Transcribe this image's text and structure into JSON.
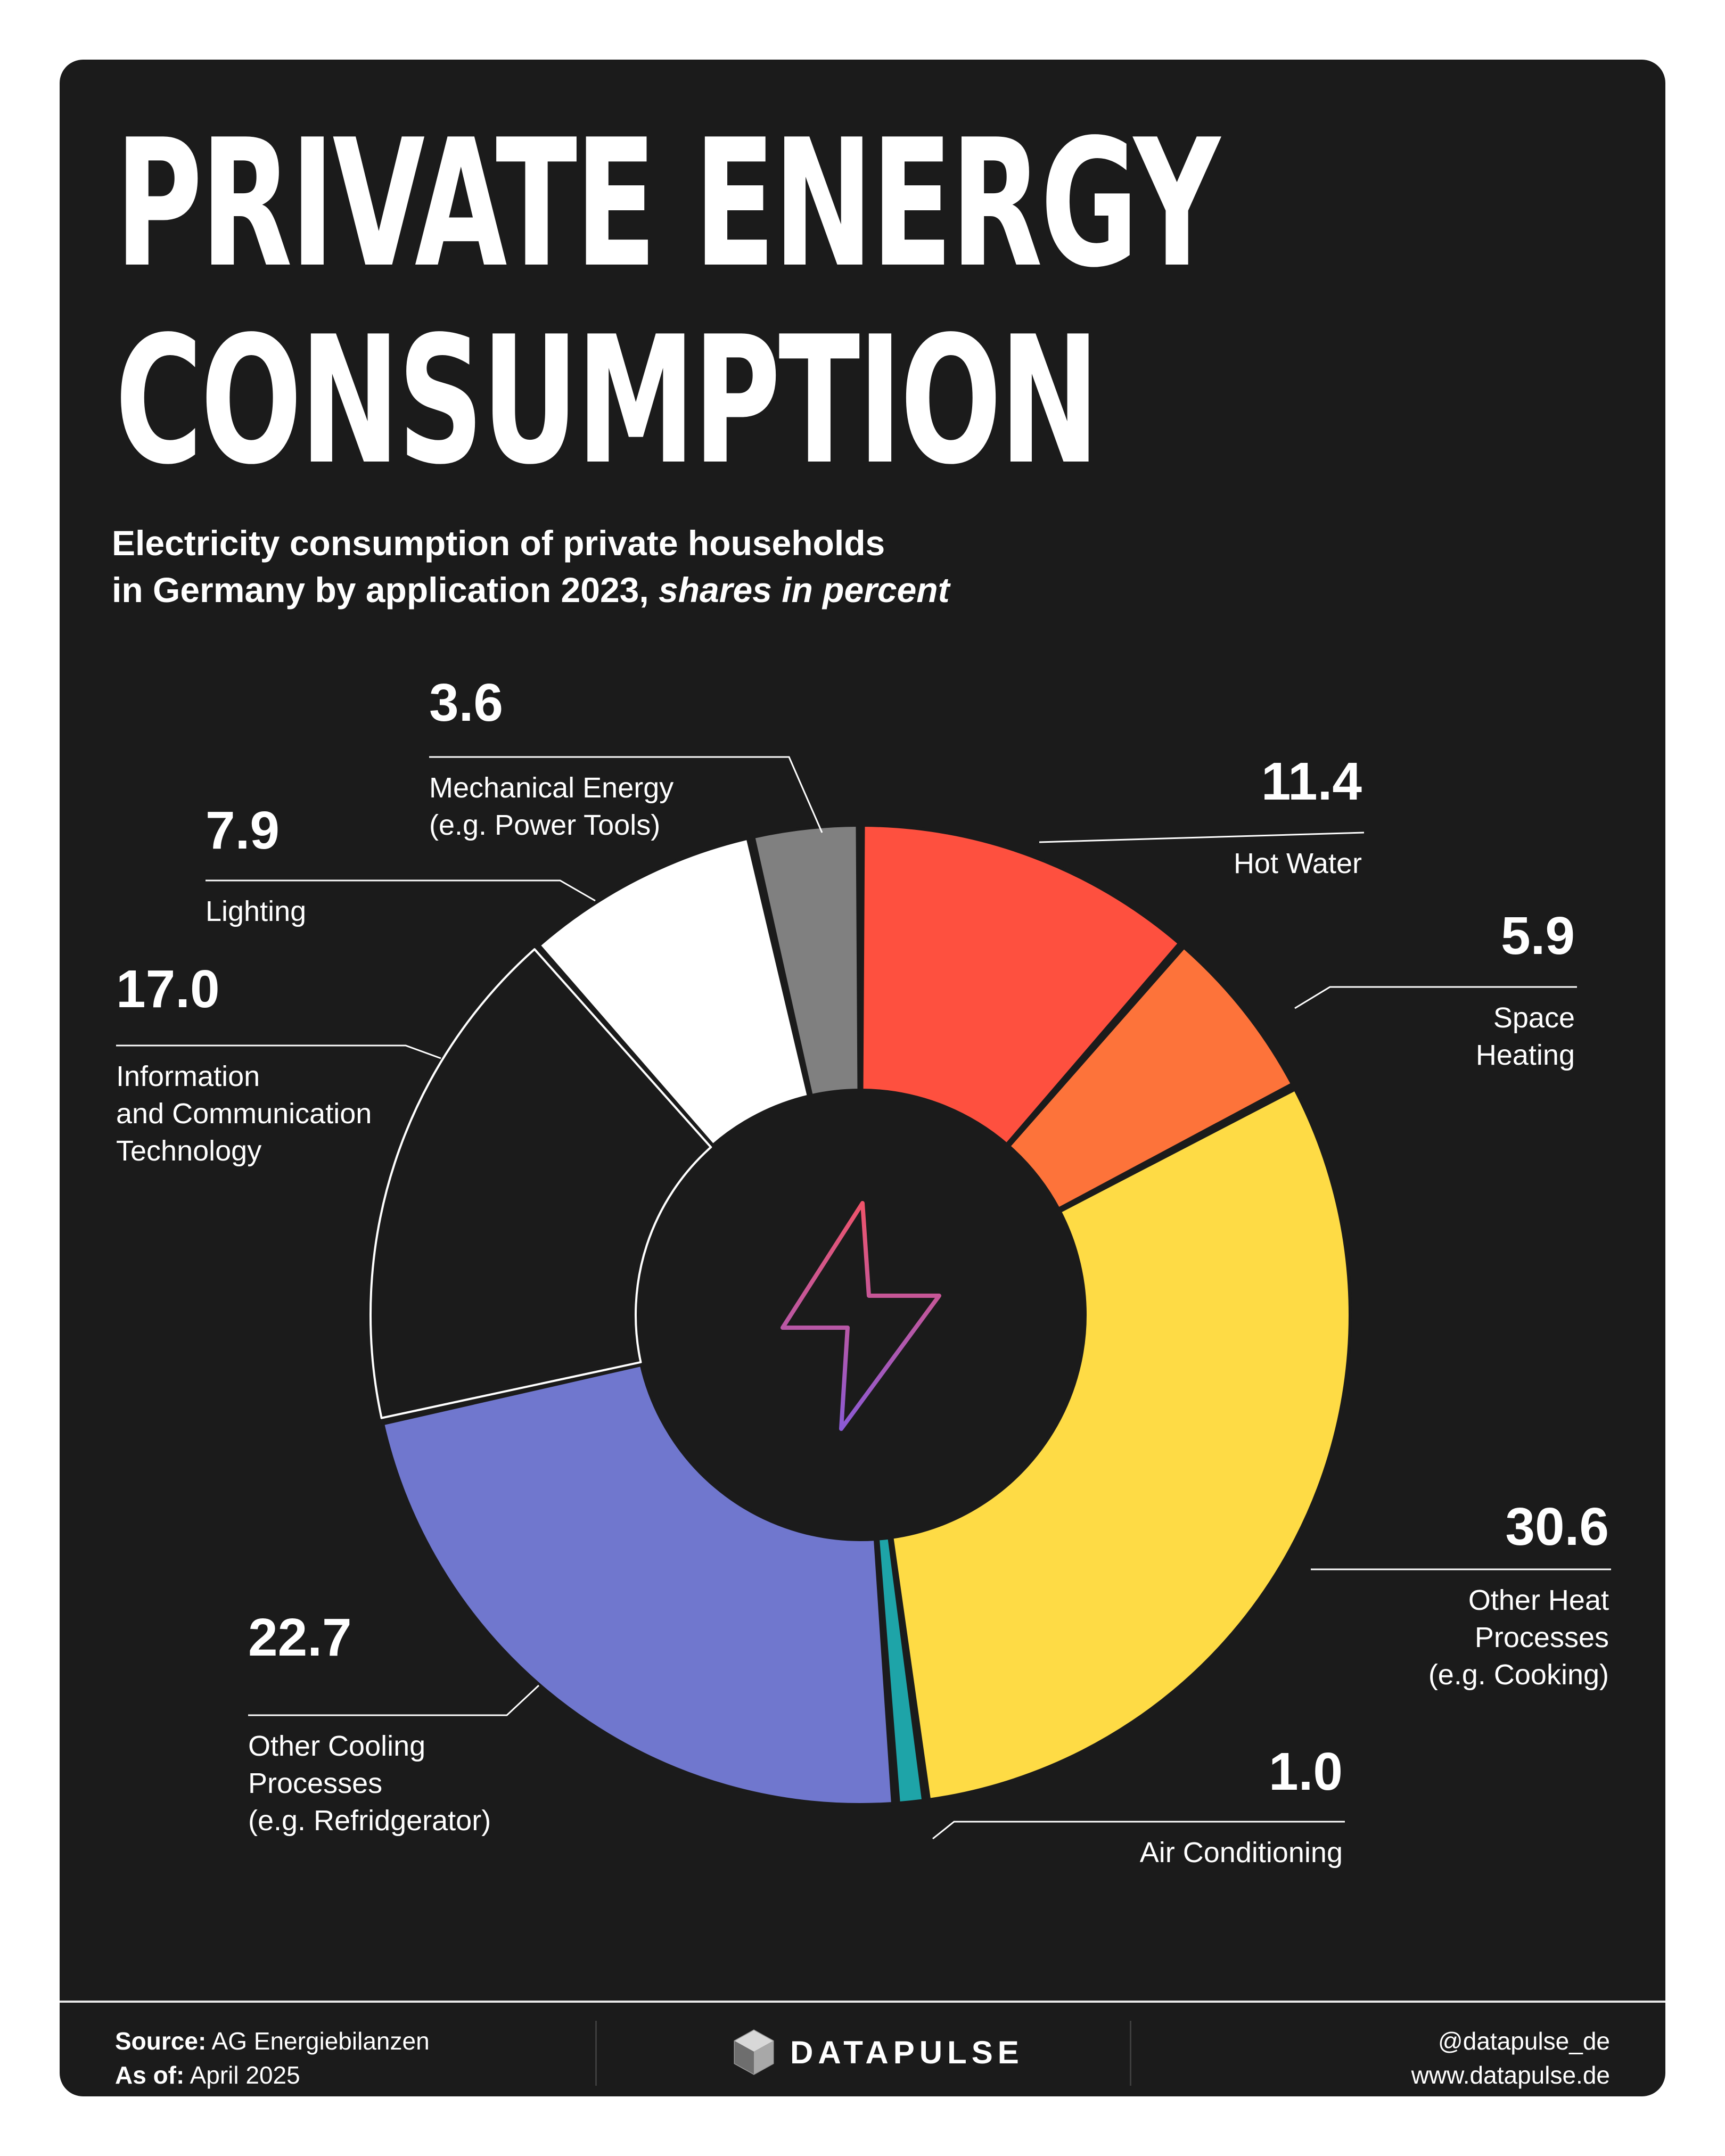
{
  "title_lines": [
    "PRIVATE ENERGY",
    "CONSUMPTION"
  ],
  "subtitle": {
    "line1": "Electricity consumption of private households",
    "line2_plain": "in Germany by application 2023, ",
    "line2_italic": "shares in percent"
  },
  "chart_data": {
    "type": "pie",
    "variant": "donut",
    "center_icon": "lightning-bolt-icon",
    "unit": "percent",
    "slices": [
      {
        "key": "hot-water",
        "value": 11.4,
        "value_label": "11.4",
        "label_lines": [
          "Hot Water"
        ],
        "color": "#fe503f"
      },
      {
        "key": "space-heating",
        "value": 5.9,
        "value_label": "5.9",
        "label_lines": [
          "Space",
          "Heating"
        ],
        "color": "#fd733a"
      },
      {
        "key": "other-heat",
        "value": 30.6,
        "value_label": "30.6",
        "label_lines": [
          "Other Heat",
          "Processes",
          "(e.g. Cooking)"
        ],
        "color": "#fedb45"
      },
      {
        "key": "air-conditioning",
        "value": 1.0,
        "value_label": "1.0",
        "label_lines": [
          "Air Conditioning"
        ],
        "color": "#1ea4a8"
      },
      {
        "key": "other-cooling",
        "value": 22.7,
        "value_label": "22.7",
        "label_lines": [
          "Other Cooling",
          "Processes",
          "(e.g. Refridgerator)"
        ],
        "color": "#7077ce"
      },
      {
        "key": "ict",
        "value": 17.0,
        "value_label": "17.0",
        "label_lines": [
          "Information",
          "and Communication",
          "Technology"
        ],
        "color": "#1b1b1b",
        "outline": "#ffffff"
      },
      {
        "key": "lighting",
        "value": 7.9,
        "value_label": "7.9",
        "label_lines": [
          "Lighting"
        ],
        "color": "#ffffff"
      },
      {
        "key": "mechanical-energy",
        "value": 3.6,
        "value_label": "3.6",
        "label_lines": [
          "Mechanical Energy",
          "(e.g. Power Tools)"
        ],
        "color": "#808080"
      }
    ]
  },
  "footer": {
    "source_label": "Source:",
    "source_value": "AG Energiebilanzen",
    "asof_label": "As of:",
    "asof_value": "April 2025",
    "brand_name": "DATAPULSE",
    "handle": "@datapulse_de",
    "website": "www.datapulse.de"
  }
}
